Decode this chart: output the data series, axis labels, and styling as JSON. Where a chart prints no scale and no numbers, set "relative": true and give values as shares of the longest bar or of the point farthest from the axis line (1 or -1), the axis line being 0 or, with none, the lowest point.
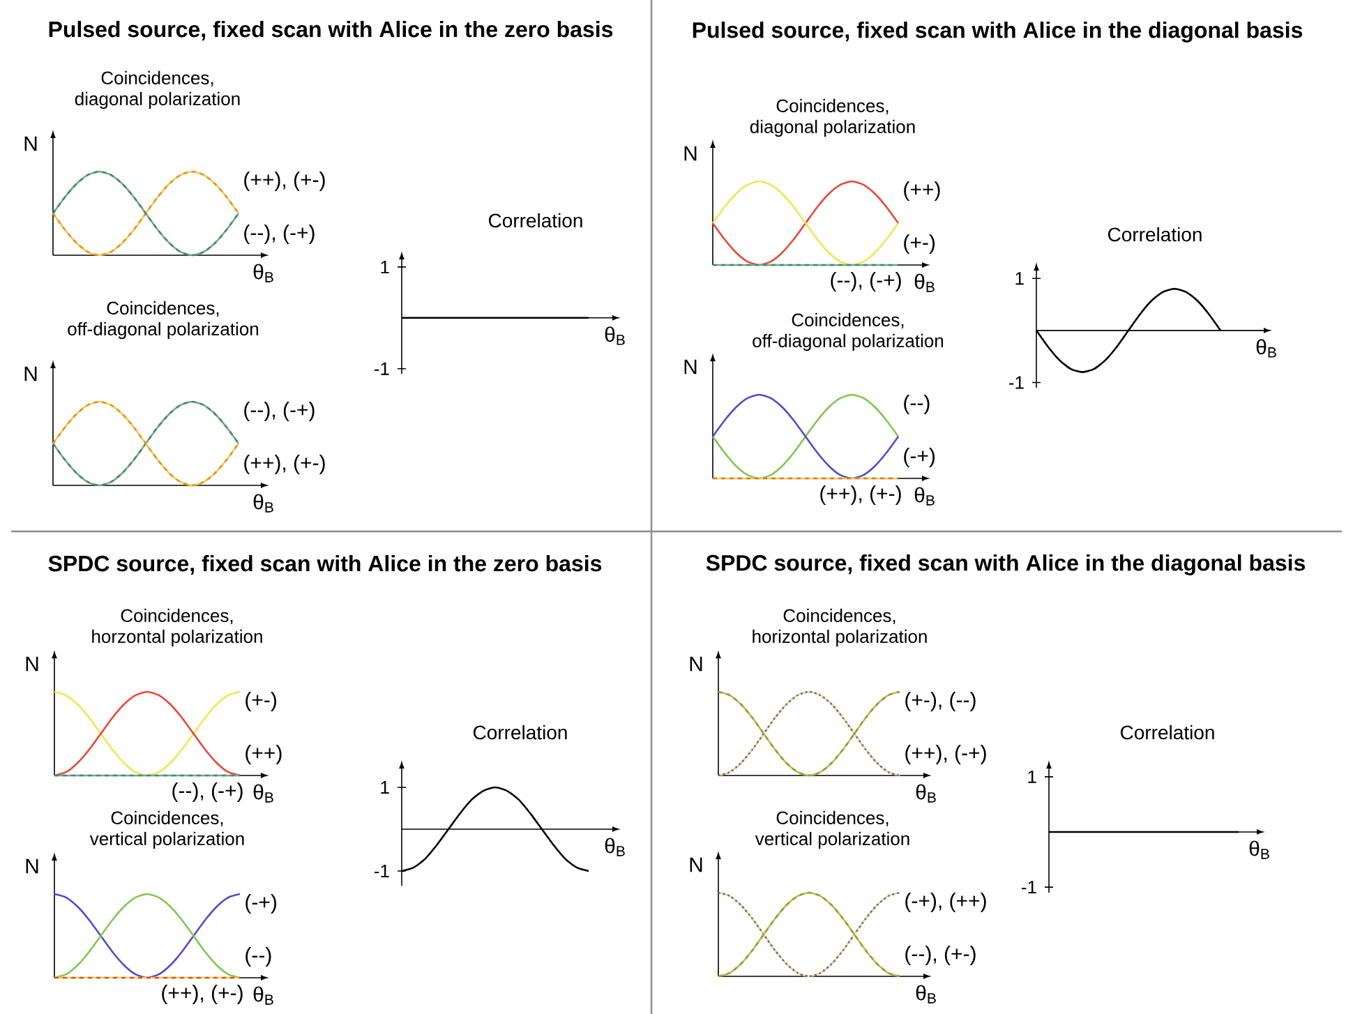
{
  "chart_data": [
    {
      "type": "line",
      "title": "Pulsed source, fixed scan with Alice in the zero basis",
      "subtitle": "Coincidences, diagonal polarization",
      "xlabel": "θ$_{B}$",
      "ylabel": "N",
      "relative": true,
      "categories": [
        null,
        null,
        null,
        null,
        null,
        null,
        null,
        null,
        null,
        null,
        null,
        null,
        null,
        null,
        null,
        null,
        null
      ],
      "series": [
        {
          "name": "(++), (+-)",
          "color": "#f0d040",
          "values": [
            0.5,
            0.31,
            0.15,
            0.04,
            0,
            0.04,
            0.15,
            0.31,
            0.5,
            0.69,
            0.85,
            0.96,
            1,
            0.96,
            0.85,
            0.69,
            0.5
          ]
        },
        {
          "color": "#f08a30",
          "line_style": "dashed",
          "values": [
            0.5,
            0.31,
            0.15,
            0.04,
            0,
            0.04,
            0.15,
            0.31,
            0.5,
            0.69,
            0.85,
            0.96,
            1,
            0.96,
            0.85,
            0.69,
            0.5
          ]
        },
        {
          "name": "(--), (-+)",
          "color": "#70b850",
          "values": [
            0.5,
            0.69,
            0.85,
            0.96,
            1,
            0.96,
            0.85,
            0.69,
            0.5,
            0.31,
            0.15,
            0.04,
            0,
            0.04,
            0.15,
            0.31,
            0.5
          ]
        },
        {
          "color": "#4a78c0",
          "line_style": "dashed",
          "values": [
            0.5,
            0.69,
            0.85,
            0.96,
            1,
            0.96,
            0.85,
            0.69,
            0.5,
            0.31,
            0.15,
            0.04,
            0,
            0.04,
            0.15,
            0.31,
            0.5
          ]
        }
      ]
    },
    {
      "type": "line",
      "title": "Coincidences, off-diagonal polarization",
      "xlabel": "θ$_{B}$",
      "ylabel": "N",
      "relative": true,
      "categories": [
        null,
        null,
        null,
        null,
        null,
        null,
        null,
        null,
        null,
        null,
        null,
        null,
        null,
        null,
        null,
        null,
        null
      ],
      "series": [
        {
          "name": "(--), (-+)",
          "color": "#70b850",
          "values": [
            0.5,
            0.31,
            0.15,
            0.04,
            0,
            0.04,
            0.15,
            0.31,
            0.5,
            0.69,
            0.85,
            0.96,
            1,
            0.96,
            0.85,
            0.69,
            0.5
          ]
        },
        {
          "color": "#4a78c0",
          "line_style": "dashed",
          "values": [
            0.5,
            0.31,
            0.15,
            0.04,
            0,
            0.04,
            0.15,
            0.31,
            0.5,
            0.69,
            0.85,
            0.96,
            1,
            0.96,
            0.85,
            0.69,
            0.5
          ]
        },
        {
          "name": "(++), (+-)",
          "color": "#f0d040",
          "values": [
            0.5,
            0.69,
            0.85,
            0.96,
            1,
            0.96,
            0.85,
            0.69,
            0.5,
            0.31,
            0.15,
            0.04,
            0,
            0.04,
            0.15,
            0.31,
            0.5
          ]
        },
        {
          "color": "#f08a30",
          "line_style": "dashed",
          "values": [
            0.5,
            0.69,
            0.85,
            0.96,
            1,
            0.96,
            0.85,
            0.69,
            0.5,
            0.31,
            0.15,
            0.04,
            0,
            0.04,
            0.15,
            0.31,
            0.5
          ]
        }
      ]
    },
    {
      "type": "line",
      "title": "Correlation",
      "xlabel": "θ$_{B}$",
      "ylim": [
        -1.1,
        1.15
      ],
      "yticks": [
        -1,
        1
      ],
      "tick_labels": "y",
      "categories": [
        null,
        null,
        null,
        null,
        null,
        null,
        null,
        null,
        null,
        null,
        null,
        null,
        null,
        null,
        null,
        null,
        null
      ],
      "series": [
        {
          "color": "#000000",
          "values": [
            0,
            0,
            0,
            0,
            0,
            0,
            0,
            0,
            0,
            0,
            0,
            0,
            0,
            0,
            0,
            0,
            0
          ]
        }
      ]
    },
    {
      "type": "line",
      "title": "Pulsed source, fixed scan with Alice in the diagonal basis",
      "subtitle": "Coincidences, diagonal polarization",
      "xlabel": "θ$_{B}$",
      "ylabel": "N",
      "relative": true,
      "categories": [
        null,
        null,
        null,
        null,
        null,
        null,
        null,
        null,
        null,
        null,
        null,
        null,
        null,
        null,
        null,
        null,
        null
      ],
      "series": [
        {
          "name": "(++)",
          "color": "#e8483a",
          "values": [
            0.5,
            0.31,
            0.15,
            0.04,
            0,
            0.04,
            0.15,
            0.31,
            0.5,
            0.69,
            0.85,
            0.96,
            1,
            0.96,
            0.85,
            0.69,
            0.5
          ]
        },
        {
          "name": "(+-)",
          "color": "#f2e650",
          "values": [
            0.5,
            0.69,
            0.85,
            0.96,
            1,
            0.96,
            0.85,
            0.69,
            0.5,
            0.31,
            0.15,
            0.04,
            0,
            0.04,
            0.15,
            0.31,
            0.5
          ]
        },
        {
          "name": "(--), (-+)",
          "color": "#70b850",
          "values": [
            0,
            0,
            0,
            0,
            0,
            0,
            0,
            0,
            0,
            0,
            0,
            0,
            0,
            0,
            0,
            0,
            0
          ]
        },
        {
          "color": "#4a78c0",
          "line_style": "dashed",
          "values": [
            0,
            0,
            0,
            0,
            0,
            0,
            0,
            0,
            0,
            0,
            0,
            0,
            0,
            0,
            0,
            0,
            0
          ]
        }
      ]
    },
    {
      "type": "line",
      "title": "Coincidences, off-diagonal polarization",
      "xlabel": "θ$_{B}$",
      "ylabel": "N",
      "relative": true,
      "categories": [
        null,
        null,
        null,
        null,
        null,
        null,
        null,
        null,
        null,
        null,
        null,
        null,
        null,
        null,
        null,
        null,
        null
      ],
      "series": [
        {
          "name": "(--)",
          "color": "#80c850",
          "values": [
            0.5,
            0.31,
            0.15,
            0.04,
            0,
            0.04,
            0.15,
            0.31,
            0.5,
            0.69,
            0.85,
            0.96,
            1,
            0.96,
            0.85,
            0.69,
            0.5
          ]
        },
        {
          "name": "(-+)",
          "color": "#5a48c8",
          "values": [
            0.5,
            0.69,
            0.85,
            0.96,
            1,
            0.96,
            0.85,
            0.69,
            0.5,
            0.31,
            0.15,
            0.04,
            0,
            0.04,
            0.15,
            0.31,
            0.5
          ]
        },
        {
          "name": "(++), (+-)",
          "color": "#f0d040",
          "values": [
            0,
            0,
            0,
            0,
            0,
            0,
            0,
            0,
            0,
            0,
            0,
            0,
            0,
            0,
            0,
            0,
            0
          ]
        },
        {
          "color": "#e8703a",
          "line_style": "dashed",
          "values": [
            0,
            0,
            0,
            0,
            0,
            0,
            0,
            0,
            0,
            0,
            0,
            0,
            0,
            0,
            0,
            0,
            0
          ]
        }
      ]
    },
    {
      "type": "line",
      "title": "Correlation",
      "xlabel": "θ$_{B}$",
      "ylim": [
        -1.1,
        1.15
      ],
      "yticks": [
        -1,
        1
      ],
      "tick_labels": "y",
      "categories": [
        null,
        null,
        null,
        null,
        null,
        null,
        null,
        null,
        null,
        null,
        null,
        null,
        null,
        null,
        null,
        null,
        null
      ],
      "series": [
        {
          "color": "#000000",
          "values": [
            0,
            -0.31,
            -0.57,
            -0.74,
            -0.8,
            -0.74,
            -0.57,
            -0.31,
            0,
            0.31,
            0.57,
            0.74,
            0.8,
            0.74,
            0.57,
            0.31,
            0
          ]
        }
      ]
    },
    {
      "type": "line",
      "title": "SPDC source, fixed scan with Alice in the zero basis",
      "subtitle": "Coincidences, horzontal polarization",
      "xlabel": "θ$_{B}$",
      "ylabel": "N",
      "relative": true,
      "categories": [
        null,
        null,
        null,
        null,
        null,
        null,
        null,
        null,
        null,
        null,
        null,
        null,
        null,
        null,
        null,
        null,
        null
      ],
      "series": [
        {
          "name": "(+-)",
          "color": "#f2e650",
          "values": [
            1,
            0.96,
            0.85,
            0.69,
            0.5,
            0.31,
            0.15,
            0.04,
            0,
            0.04,
            0.15,
            0.31,
            0.5,
            0.69,
            0.85,
            0.96,
            1
          ]
        },
        {
          "name": "(++)",
          "color": "#e8483a",
          "values": [
            0,
            0.04,
            0.15,
            0.31,
            0.5,
            0.69,
            0.85,
            0.96,
            1,
            0.96,
            0.85,
            0.69,
            0.5,
            0.31,
            0.15,
            0.04,
            0
          ]
        },
        {
          "name": "(--), (-+)",
          "color": "#70b850",
          "values": [
            0,
            0,
            0,
            0,
            0,
            0,
            0,
            0,
            0,
            0,
            0,
            0,
            0,
            0,
            0,
            0,
            0
          ]
        },
        {
          "color": "#4a78c0",
          "line_style": "dashed",
          "values": [
            0,
            0,
            0,
            0,
            0,
            0,
            0,
            0,
            0,
            0,
            0,
            0,
            0,
            0,
            0,
            0,
            0
          ]
        }
      ]
    },
    {
      "type": "line",
      "title": "Coincidences, vertical polarization",
      "xlabel": "θ$_{B}$",
      "ylabel": "N",
      "relative": true,
      "categories": [
        null,
        null,
        null,
        null,
        null,
        null,
        null,
        null,
        null,
        null,
        null,
        null,
        null,
        null,
        null,
        null,
        null
      ],
      "series": [
        {
          "name": "(-+)",
          "color": "#5a48c8",
          "values": [
            1,
            0.96,
            0.85,
            0.69,
            0.5,
            0.31,
            0.15,
            0.04,
            0,
            0.04,
            0.15,
            0.31,
            0.5,
            0.69,
            0.85,
            0.96,
            1
          ]
        },
        {
          "name": "(--)",
          "color": "#80c850",
          "values": [
            0,
            0.04,
            0.15,
            0.31,
            0.5,
            0.69,
            0.85,
            0.96,
            1,
            0.96,
            0.85,
            0.69,
            0.5,
            0.31,
            0.15,
            0.04,
            0
          ]
        },
        {
          "name": "(++), (+-)",
          "color": "#f0d040",
          "values": [
            0,
            0,
            0,
            0,
            0,
            0,
            0,
            0,
            0,
            0,
            0,
            0,
            0,
            0,
            0,
            0,
            0
          ]
        },
        {
          "color": "#e8483a",
          "line_style": "dashed",
          "values": [
            0,
            0,
            0,
            0,
            0,
            0,
            0,
            0,
            0,
            0,
            0,
            0,
            0,
            0,
            0,
            0,
            0
          ]
        }
      ]
    },
    {
      "type": "line",
      "title": "Correlation",
      "xlabel": "θ$_{B}$",
      "ylim": [
        -1.35,
        1.45
      ],
      "yticks": [
        -1,
        1
      ],
      "tick_labels": "y",
      "categories": [
        null,
        null,
        null,
        null,
        null,
        null,
        null,
        null,
        null,
        null,
        null,
        null,
        null,
        null,
        null,
        null,
        null
      ],
      "series": [
        {
          "color": "#000000",
          "values": [
            -1,
            -0.92,
            -0.71,
            -0.38,
            0,
            0.38,
            0.71,
            0.92,
            1,
            0.92,
            0.71,
            0.38,
            0,
            -0.38,
            -0.71,
            -0.92,
            -1
          ]
        }
      ]
    },
    {
      "type": "line",
      "title": "SPDC source, fixed scan with Alice in the diagonal basis",
      "subtitle": "Coincidences, horizontal polarization",
      "xlabel": "θ$_{B}$",
      "ylabel": "N",
      "relative": true,
      "categories": [
        null,
        null,
        null,
        null,
        null,
        null,
        null,
        null,
        null,
        null,
        null,
        null,
        null,
        null,
        null,
        null,
        null
      ],
      "series": [
        {
          "name": "(+-), (--)",
          "color": "#c8b848",
          "values": [
            1,
            0.96,
            0.85,
            0.69,
            0.5,
            0.31,
            0.15,
            0.04,
            0,
            0.04,
            0.15,
            0.31,
            0.5,
            0.69,
            0.85,
            0.96,
            1
          ]
        },
        {
          "color": "#8aa040",
          "line_style": "dashed",
          "values": [
            1,
            0.96,
            0.85,
            0.69,
            0.5,
            0.31,
            0.15,
            0.04,
            0,
            0.04,
            0.15,
            0.31,
            0.5,
            0.69,
            0.85,
            0.96,
            1
          ]
        },
        {
          "name": "(++), (-+)",
          "color": "#e8dc70",
          "values": [
            0,
            0.04,
            0.15,
            0.31,
            0.5,
            0.69,
            0.85,
            0.96,
            1,
            0.96,
            0.85,
            0.69,
            0.5,
            0.31,
            0.15,
            0.04,
            0
          ]
        },
        {
          "color": "#6a5ac0",
          "line_style": "dotted",
          "values": [
            0,
            0.04,
            0.15,
            0.31,
            0.5,
            0.69,
            0.85,
            0.96,
            1,
            0.96,
            0.85,
            0.69,
            0.5,
            0.31,
            0.15,
            0.04,
            0
          ]
        }
      ]
    },
    {
      "type": "line",
      "title": "Coincidences, vertical polarization",
      "xlabel": "θ$_{B}$",
      "ylabel": "N",
      "relative": true,
      "categories": [
        null,
        null,
        null,
        null,
        null,
        null,
        null,
        null,
        null,
        null,
        null,
        null,
        null,
        null,
        null,
        null,
        null
      ],
      "series": [
        {
          "name": "(-+), (++)",
          "color": "#e8dc70",
          "values": [
            1,
            0.96,
            0.85,
            0.69,
            0.5,
            0.31,
            0.15,
            0.04,
            0,
            0.04,
            0.15,
            0.31,
            0.5,
            0.69,
            0.85,
            0.96,
            1
          ]
        },
        {
          "color": "#6a5ac0",
          "line_style": "dotted",
          "values": [
            1,
            0.96,
            0.85,
            0.69,
            0.5,
            0.31,
            0.15,
            0.04,
            0,
            0.04,
            0.15,
            0.31,
            0.5,
            0.69,
            0.85,
            0.96,
            1
          ]
        },
        {
          "name": "(--), (+-)",
          "color": "#c8b848",
          "values": [
            0,
            0.04,
            0.15,
            0.31,
            0.5,
            0.69,
            0.85,
            0.96,
            1,
            0.96,
            0.85,
            0.69,
            0.5,
            0.31,
            0.15,
            0.04,
            0
          ]
        },
        {
          "color": "#8aa040",
          "line_style": "dashed",
          "values": [
            0,
            0.04,
            0.15,
            0.31,
            0.5,
            0.69,
            0.85,
            0.96,
            1,
            0.96,
            0.85,
            0.69,
            0.5,
            0.31,
            0.15,
            0.04,
            0
          ]
        }
      ]
    },
    {
      "type": "line",
      "title": "Correlation",
      "xlabel": "θ$_{B}$",
      "ylim": [
        -1.1,
        1.15
      ],
      "yticks": [
        -1,
        1
      ],
      "tick_labels": "y",
      "categories": [
        null,
        null,
        null,
        null,
        null,
        null,
        null,
        null,
        null,
        null,
        null,
        null,
        null,
        null,
        null,
        null,
        null
      ],
      "series": [
        {
          "color": "#000000",
          "values": [
            0,
            0,
            0,
            0,
            0,
            0,
            0,
            0,
            0,
            0,
            0,
            0,
            0,
            0,
            0,
            0,
            0
          ]
        }
      ]
    }
  ]
}
